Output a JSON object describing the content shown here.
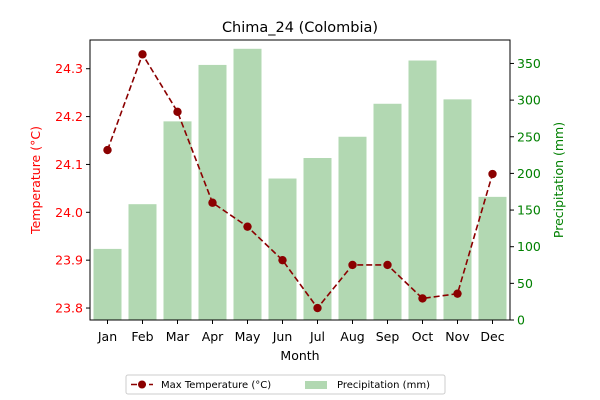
{
  "chart_data": {
    "type": "bar+line",
    "title": "Chima_24 (Colombia)",
    "xlabel": "Month",
    "ylabel_left": "Temperature (°C)",
    "ylabel_right": "Precipitation (mm)",
    "categories": [
      "Jan",
      "Feb",
      "Mar",
      "Apr",
      "May",
      "Jun",
      "Jul",
      "Aug",
      "Sep",
      "Oct",
      "Nov",
      "Dec"
    ],
    "ylim_left": [
      23.775,
      24.36
    ],
    "ylim_right": [
      0,
      382
    ],
    "yticks_left": [
      "23.8",
      "23.9",
      "24.0",
      "24.1",
      "24.2",
      "24.3"
    ],
    "yticks_right": [
      "0",
      "50",
      "100",
      "150",
      "200",
      "250",
      "300",
      "350"
    ],
    "grid": false,
    "legend_position": "bottom-center",
    "series": [
      {
        "name": "Max Temperature (°C)",
        "kind": "line",
        "axis": "left",
        "color": "#8b0000",
        "values": [
          24.13,
          24.33,
          24.21,
          24.02,
          23.97,
          23.9,
          23.8,
          23.89,
          23.89,
          23.82,
          23.83,
          24.08
        ]
      },
      {
        "name": "Precipitation (mm)",
        "kind": "bar",
        "axis": "right",
        "color": "#b2d8b2",
        "values": [
          97,
          158,
          271,
          348,
          370,
          193,
          221,
          250,
          295,
          354,
          301,
          168
        ]
      }
    ],
    "left_axis_color": "#ff0000",
    "right_axis_color": "#008000"
  }
}
